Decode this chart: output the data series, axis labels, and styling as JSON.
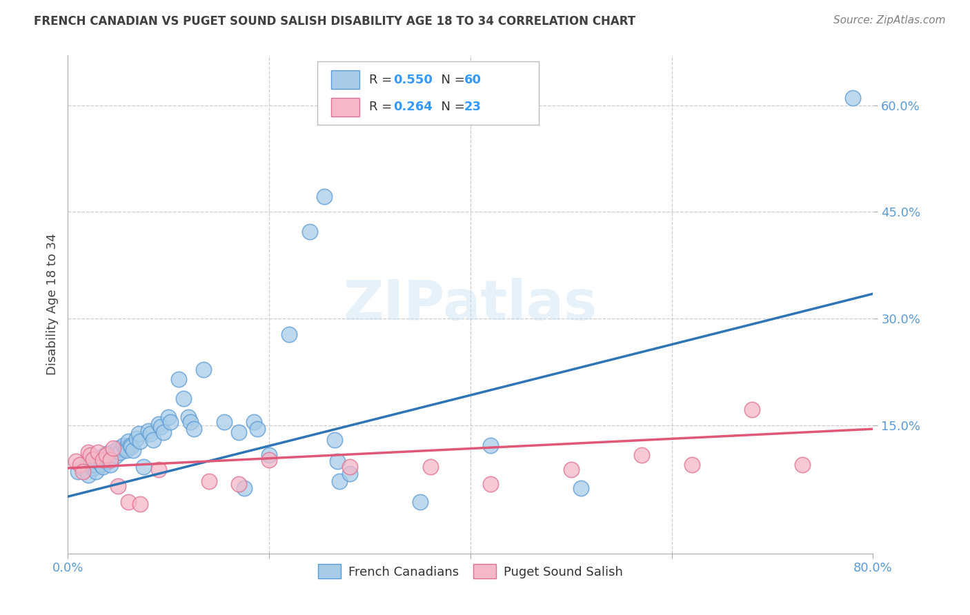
{
  "title": "FRENCH CANADIAN VS PUGET SOUND SALISH DISABILITY AGE 18 TO 34 CORRELATION CHART",
  "source": "Source: ZipAtlas.com",
  "ylabel": "Disability Age 18 to 34",
  "xlim": [
    0.0,
    0.8
  ],
  "ylim": [
    -0.03,
    0.67
  ],
  "xticks": [
    0.0,
    0.2,
    0.4,
    0.6,
    0.8
  ],
  "xticklabels": [
    "0.0%",
    "",
    "",
    "",
    "80.0%"
  ],
  "yticks": [
    0.15,
    0.3,
    0.45,
    0.6
  ],
  "yticklabels": [
    "15.0%",
    "30.0%",
    "45.0%",
    "60.0%"
  ],
  "blue_color": "#a8cce8",
  "blue_edge_color": "#5b9bd5",
  "blue_line_color": "#2e75b6",
  "pink_color": "#f4b8c8",
  "pink_edge_color": "#e07090",
  "pink_line_color": "#e05878",
  "blue_scatter": [
    [
      0.01,
      0.085
    ],
    [
      0.015,
      0.09
    ],
    [
      0.018,
      0.095
    ],
    [
      0.02,
      0.08
    ],
    [
      0.022,
      0.1
    ],
    [
      0.025,
      0.09
    ],
    [
      0.025,
      0.095
    ],
    [
      0.028,
      0.085
    ],
    [
      0.03,
      0.1
    ],
    [
      0.032,
      0.105
    ],
    [
      0.033,
      0.095
    ],
    [
      0.035,
      0.092
    ],
    [
      0.038,
      0.11
    ],
    [
      0.04,
      0.105
    ],
    [
      0.04,
      0.1
    ],
    [
      0.042,
      0.095
    ],
    [
      0.045,
      0.113
    ],
    [
      0.047,
      0.11
    ],
    [
      0.048,
      0.107
    ],
    [
      0.05,
      0.118
    ],
    [
      0.052,
      0.112
    ],
    [
      0.055,
      0.122
    ],
    [
      0.057,
      0.118
    ],
    [
      0.058,
      0.115
    ],
    [
      0.06,
      0.128
    ],
    [
      0.062,
      0.122
    ],
    [
      0.063,
      0.12
    ],
    [
      0.065,
      0.115
    ],
    [
      0.068,
      0.132
    ],
    [
      0.07,
      0.138
    ],
    [
      0.072,
      0.128
    ],
    [
      0.075,
      0.092
    ],
    [
      0.08,
      0.142
    ],
    [
      0.082,
      0.138
    ],
    [
      0.085,
      0.13
    ],
    [
      0.09,
      0.152
    ],
    [
      0.092,
      0.148
    ],
    [
      0.095,
      0.14
    ],
    [
      0.1,
      0.162
    ],
    [
      0.102,
      0.155
    ],
    [
      0.11,
      0.215
    ],
    [
      0.115,
      0.188
    ],
    [
      0.12,
      0.162
    ],
    [
      0.122,
      0.155
    ],
    [
      0.125,
      0.145
    ],
    [
      0.135,
      0.228
    ],
    [
      0.155,
      0.155
    ],
    [
      0.17,
      0.14
    ],
    [
      0.175,
      0.062
    ],
    [
      0.185,
      0.155
    ],
    [
      0.188,
      0.145
    ],
    [
      0.2,
      0.108
    ],
    [
      0.22,
      0.278
    ],
    [
      0.24,
      0.422
    ],
    [
      0.255,
      0.472
    ],
    [
      0.265,
      0.13
    ],
    [
      0.268,
      0.1
    ],
    [
      0.27,
      0.072
    ],
    [
      0.28,
      0.082
    ],
    [
      0.35,
      0.042
    ],
    [
      0.42,
      0.122
    ],
    [
      0.51,
      0.062
    ],
    [
      0.78,
      0.61
    ]
  ],
  "pink_scatter": [
    [
      0.008,
      0.1
    ],
    [
      0.012,
      0.095
    ],
    [
      0.015,
      0.085
    ],
    [
      0.02,
      0.112
    ],
    [
      0.022,
      0.108
    ],
    [
      0.025,
      0.103
    ],
    [
      0.03,
      0.112
    ],
    [
      0.035,
      0.102
    ],
    [
      0.038,
      0.108
    ],
    [
      0.042,
      0.102
    ],
    [
      0.045,
      0.118
    ],
    [
      0.05,
      0.065
    ],
    [
      0.06,
      0.042
    ],
    [
      0.072,
      0.04
    ],
    [
      0.09,
      0.088
    ],
    [
      0.14,
      0.072
    ],
    [
      0.17,
      0.068
    ],
    [
      0.2,
      0.102
    ],
    [
      0.28,
      0.092
    ],
    [
      0.36,
      0.092
    ],
    [
      0.42,
      0.068
    ],
    [
      0.5,
      0.088
    ],
    [
      0.57,
      0.108
    ],
    [
      0.62,
      0.095
    ],
    [
      0.68,
      0.172
    ],
    [
      0.73,
      0.095
    ]
  ],
  "blue_line": [
    [
      0.0,
      0.05
    ],
    [
      0.8,
      0.335
    ]
  ],
  "pink_line": [
    [
      0.0,
      0.09
    ],
    [
      0.8,
      0.145
    ]
  ],
  "watermark_text": "ZIPatlas",
  "background_color": "#ffffff",
  "grid_color": "#cccccc",
  "tick_color": "#5b9bd5",
  "title_color": "#404040",
  "source_color": "#808080"
}
